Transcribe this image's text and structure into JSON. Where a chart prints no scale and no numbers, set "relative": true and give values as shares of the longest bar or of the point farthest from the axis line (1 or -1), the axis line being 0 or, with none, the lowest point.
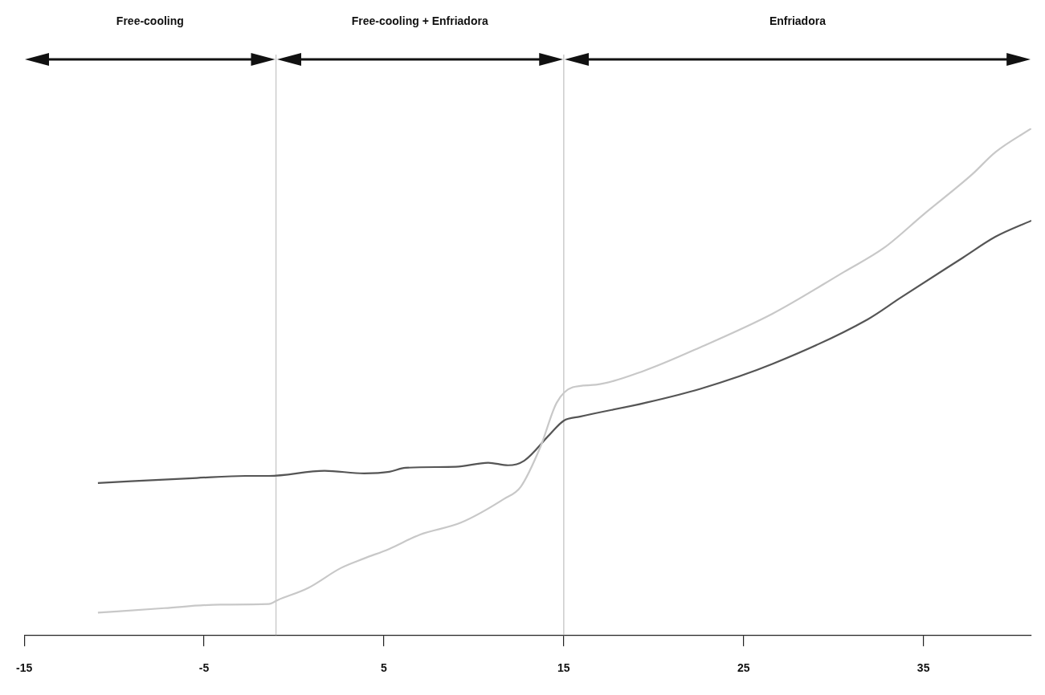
{
  "chart_data": {
    "type": "line",
    "relative": true,
    "xlim": [
      -15,
      41
    ],
    "xticks": [
      -15,
      -5,
      5,
      15,
      25,
      35
    ],
    "series": [
      {
        "color": "#c8c8c8",
        "x": [
          -10.9,
          -7.2,
          -4.1,
          -1.4,
          -0.9,
          0.8,
          2.6,
          3.9,
          5.3,
          7.0,
          9.3,
          11.7,
          12.6,
          13.7,
          14.6,
          15.5,
          16.8,
          19.5,
          22.6,
          26.6,
          30.6,
          32.8,
          35.0,
          37.7,
          39.0,
          41.0
        ],
        "values": [
          0.044,
          0.053,
          0.06,
          0.061,
          0.069,
          0.093,
          0.132,
          0.151,
          0.17,
          0.198,
          0.222,
          0.269,
          0.292,
          0.371,
          0.458,
          0.489,
          0.494,
          0.522,
          0.568,
          0.634,
          0.717,
          0.764,
          0.83,
          0.909,
          0.953,
          1.0
        ]
      },
      {
        "color": "#555555",
        "x": [
          -10.9,
          -5.4,
          -2.7,
          -1.4,
          1.7,
          3.9,
          5.3,
          6.2,
          9.0,
          10.8,
          11.9,
          12.8,
          14.2,
          15.0,
          15.9,
          19.5,
          22.6,
          26.6,
          31.9,
          33.7,
          37.2,
          39.0,
          41.0
        ],
        "values": [
          0.3,
          0.31,
          0.314,
          0.314,
          0.324,
          0.319,
          0.322,
          0.33,
          0.332,
          0.34,
          0.335,
          0.344,
          0.395,
          0.423,
          0.431,
          0.458,
          0.486,
          0.535,
          0.623,
          0.665,
          0.745,
          0.786,
          0.818
        ]
      }
    ],
    "ref_lines": [
      {
        "axis": "x",
        "value": -1,
        "color": "#cccccc"
      },
      {
        "axis": "x",
        "value": 15,
        "color": "#cccccc"
      }
    ],
    "annotations": [
      "Free-cooling",
      "Free-cooling + Enfriadora",
      "Enfriadora"
    ],
    "legend": false,
    "grid": false,
    "marker": "none",
    "line_style": "solid"
  }
}
